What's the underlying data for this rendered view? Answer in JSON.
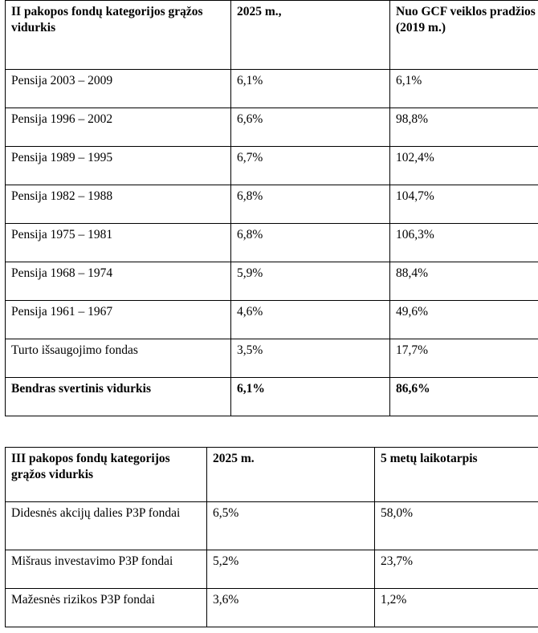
{
  "pillar2": {
    "headers": [
      "II pakopos fondų kategorijos grąžos vidurkis",
      "2025 m.,",
      "Nuo GCF veiklos pradžios (2019 m.)"
    ],
    "rows": [
      [
        "Pensija 2003 – 2009",
        "6,1%",
        "6,1%"
      ],
      [
        "Pensija 1996 – 2002",
        "6,6%",
        "98,8%"
      ],
      [
        "Pensija 1989 – 1995",
        "6,7%",
        "102,4%"
      ],
      [
        "Pensija 1982 – 1988",
        "6,8%",
        "104,7%"
      ],
      [
        "Pensija 1975 – 1981",
        "6,8%",
        "106,3%"
      ],
      [
        "Pensija 1968 – 1974",
        "5,9%",
        "88,4%"
      ],
      [
        "Pensija 1961 – 1967",
        "4,6%",
        "49,6%"
      ],
      [
        "Turto išsaugojimo fondas",
        "3,5%",
        "17,7%"
      ]
    ],
    "total": [
      "Bendras svertinis vidurkis",
      "6,1%",
      "86,6%"
    ]
  },
  "pillar3": {
    "headers": [
      "III pakopos fondų kategorijos grąžos vidurkis",
      "2025 m.",
      "5 metų laikotarpis"
    ],
    "rows": [
      [
        "Didesnės akcijų dalies P3P fondai",
        "6,5%",
        "58,0%"
      ],
      [
        "Mišraus investavimo P3P fondai",
        "5,2%",
        "23,7%"
      ],
      [
        "Mažesnės rizikos P3P fondai",
        "3,6%",
        "1,2%"
      ]
    ]
  }
}
